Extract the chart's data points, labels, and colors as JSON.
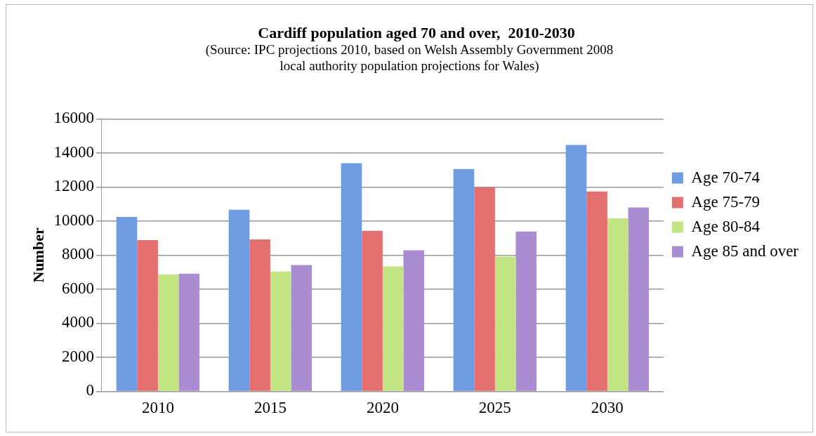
{
  "chart_data": {
    "type": "bar",
    "title": "Cardiff population aged 70 and over,  2010-2030",
    "annotations": [
      "(Source: IPC projections 2010, based on Welsh Assembly Government 2008 local authority population projections for Wales)"
    ],
    "ylabel": "Number",
    "categories": [
      "2010",
      "2015",
      "2020",
      "2025",
      "2030"
    ],
    "series": [
      {
        "name": "Age 70-74",
        "color": "#6f9be0",
        "values": [
          10240,
          10670,
          13400,
          13060,
          14470
        ]
      },
      {
        "name": "Age 75-79",
        "color": "#e46f6f",
        "values": [
          8880,
          8920,
          9430,
          11990,
          11740
        ]
      },
      {
        "name": "Age 80-84",
        "color": "#c2e482",
        "values": [
          6870,
          7040,
          7340,
          7910,
          10160
        ]
      },
      {
        "name": "Age 85 and over",
        "color": "#a98cd2",
        "values": [
          6910,
          7420,
          8280,
          9390,
          10800
        ]
      }
    ],
    "ylim": [
      0,
      16000
    ],
    "yticks": [
      0,
      2000,
      4000,
      6000,
      8000,
      10000,
      12000,
      14000,
      16000
    ],
    "grid": "y",
    "legend": "right"
  }
}
